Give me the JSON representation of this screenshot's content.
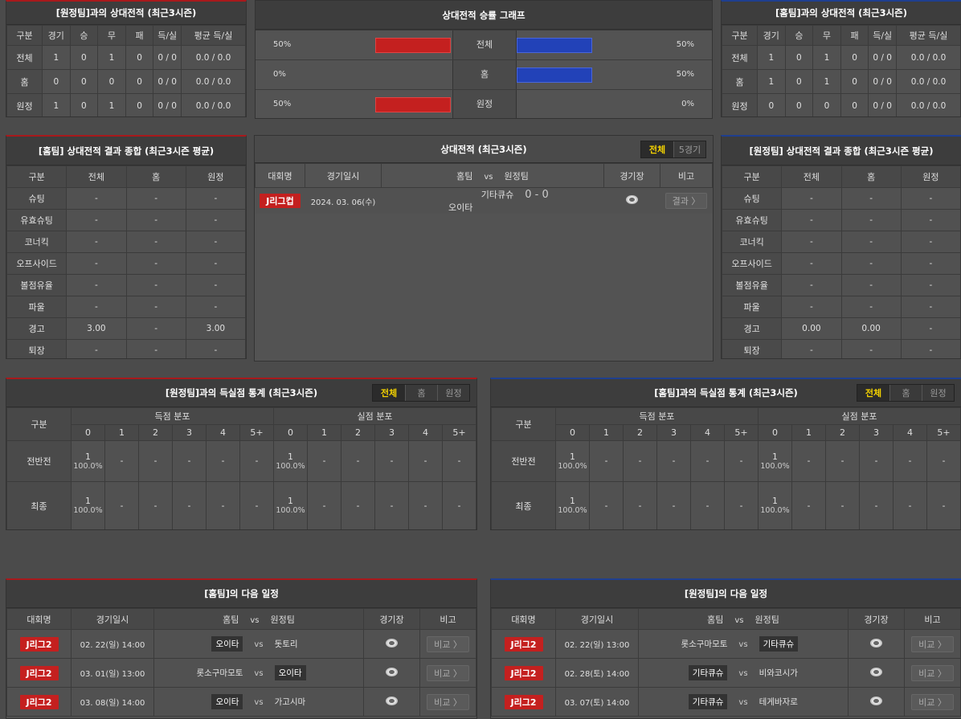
{
  "colors": {
    "accent_yellow": "#f5d300",
    "away_red": "#a8191c",
    "home_blue": "#1f3f8f",
    "badge_red": "#c4201f",
    "bar_blue": "#2242b8"
  },
  "h2h_away": {
    "title": "[원정팀]과의 상대전적 (최근3시즌)",
    "headers": [
      "구분",
      "경기",
      "승",
      "무",
      "패",
      "득/실",
      "평균 득/실"
    ],
    "rows": [
      [
        "전체",
        "1",
        "0",
        "1",
        "0",
        "0 / 0",
        "0.0 / 0.0"
      ],
      [
        "홈",
        "0",
        "0",
        "0",
        "0",
        "0 / 0",
        "0.0 / 0.0"
      ],
      [
        "원정",
        "1",
        "0",
        "1",
        "0",
        "0 / 0",
        "0.0 / 0.0"
      ]
    ]
  },
  "h2h_home": {
    "title": "[홈팀]과의 상대전적 (최근3시즌)",
    "headers": [
      "구분",
      "경기",
      "승",
      "무",
      "패",
      "득/실",
      "평균 득/실"
    ],
    "rows": [
      [
        "전체",
        "1",
        "0",
        "1",
        "0",
        "0 / 0",
        "0.0 / 0.0"
      ],
      [
        "홈",
        "1",
        "0",
        "1",
        "0",
        "0 / 0",
        "0.0 / 0.0"
      ],
      [
        "원정",
        "0",
        "0",
        "0",
        "0",
        "0 / 0",
        "0.0 / 0.0"
      ]
    ]
  },
  "graph": {
    "title": "상대전적 승률 그래프",
    "rows": [
      {
        "label": "전체",
        "left": "50%",
        "left_value": 50,
        "right": "50%",
        "right_value": 50
      },
      {
        "label": "홈",
        "left": "0%",
        "left_value": 0,
        "right": "50%",
        "right_value": 50
      },
      {
        "label": "원정",
        "left": "50%",
        "left_value": 50,
        "right": "0%",
        "right_value": 0
      }
    ]
  },
  "summary_home": {
    "title": "[홈팀] 상대전적 결과 종합 (최근3시즌 평균)",
    "headers": [
      "구분",
      "전체",
      "홈",
      "원정"
    ],
    "rows": [
      [
        "슈팅",
        "-",
        "-",
        "-"
      ],
      [
        "유효슈팅",
        "-",
        "-",
        "-"
      ],
      [
        "코너킥",
        "-",
        "-",
        "-"
      ],
      [
        "오프사이드",
        "-",
        "-",
        "-"
      ],
      [
        "볼점유율",
        "-",
        "-",
        "-"
      ],
      [
        "파울",
        "-",
        "-",
        "-"
      ],
      [
        "경고",
        "3.00",
        "-",
        "3.00"
      ],
      [
        "퇴장",
        "-",
        "-",
        "-"
      ]
    ]
  },
  "summary_away": {
    "title": "[원정팀] 상대전적 결과 종합 (최근3시즌 평균)",
    "headers": [
      "구분",
      "전체",
      "홈",
      "원정"
    ],
    "rows": [
      [
        "슈팅",
        "-",
        "-",
        "-"
      ],
      [
        "유효슈팅",
        "-",
        "-",
        "-"
      ],
      [
        "코너킥",
        "-",
        "-",
        "-"
      ],
      [
        "오프사이드",
        "-",
        "-",
        "-"
      ],
      [
        "볼점유율",
        "-",
        "-",
        "-"
      ],
      [
        "파울",
        "-",
        "-",
        "-"
      ],
      [
        "경고",
        "0.00",
        "0.00",
        "-"
      ],
      [
        "퇴장",
        "-",
        "-",
        "-"
      ]
    ]
  },
  "h2h_matches": {
    "title": "상대전적 (최근3시즌)",
    "tabs": [
      "전체",
      "5경기"
    ],
    "headers": [
      "대회명",
      "경기일시",
      "홈팀",
      "vs",
      "원정팀",
      "경기장",
      "비고"
    ],
    "rows": [
      {
        "league": "J리그컵",
        "date": "2024. 03. 06(수)",
        "home": "기타큐슈",
        "score": "0 - 0",
        "away": "오이타",
        "button": "결과 〉"
      }
    ]
  },
  "goals_away": {
    "title": "[원정팀]과의 득실점 통계 (최근3시즌)",
    "tabs": [
      "전체",
      "홈",
      "원정"
    ],
    "col_label": "구분",
    "scored": "득점 분포",
    "conceded": "실점 분포",
    "buckets": [
      "0",
      "1",
      "2",
      "3",
      "4",
      "5+"
    ],
    "rows": [
      {
        "label": "전반전",
        "cells": [
          [
            "1",
            "100.0%"
          ],
          [
            "-"
          ],
          [
            "-"
          ],
          [
            "-"
          ],
          [
            "-"
          ],
          [
            "-"
          ],
          [
            "1",
            "100.0%"
          ],
          [
            "-"
          ],
          [
            "-"
          ],
          [
            "-"
          ],
          [
            "-"
          ],
          [
            "-"
          ]
        ]
      },
      {
        "label": "최종",
        "cells": [
          [
            "1",
            "100.0%"
          ],
          [
            "-"
          ],
          [
            "-"
          ],
          [
            "-"
          ],
          [
            "-"
          ],
          [
            "-"
          ],
          [
            "1",
            "100.0%"
          ],
          [
            "-"
          ],
          [
            "-"
          ],
          [
            "-"
          ],
          [
            "-"
          ],
          [
            "-"
          ]
        ]
      }
    ]
  },
  "goals_home": {
    "title": "[홈팀]과의 득실점 통계 (최근3시즌)",
    "tabs": [
      "전체",
      "홈",
      "원정"
    ],
    "col_label": "구분",
    "scored": "득점 분포",
    "conceded": "실점 분포",
    "buckets": [
      "0",
      "1",
      "2",
      "3",
      "4",
      "5+"
    ],
    "rows": [
      {
        "label": "전반전",
        "cells": [
          [
            "1",
            "100.0%"
          ],
          [
            "-"
          ],
          [
            "-"
          ],
          [
            "-"
          ],
          [
            "-"
          ],
          [
            "-"
          ],
          [
            "1",
            "100.0%"
          ],
          [
            "-"
          ],
          [
            "-"
          ],
          [
            "-"
          ],
          [
            "-"
          ],
          [
            "-"
          ]
        ]
      },
      {
        "label": "최종",
        "cells": [
          [
            "1",
            "100.0%"
          ],
          [
            "-"
          ],
          [
            "-"
          ],
          [
            "-"
          ],
          [
            "-"
          ],
          [
            "-"
          ],
          [
            "1",
            "100.0%"
          ],
          [
            "-"
          ],
          [
            "-"
          ],
          [
            "-"
          ],
          [
            "-"
          ],
          [
            "-"
          ]
        ]
      }
    ]
  },
  "next_home": {
    "title": "[홈팀]의 다음 일정",
    "headers": [
      "대회명",
      "경기일시",
      "홈팀",
      "vs",
      "원정팀",
      "경기장",
      "비고"
    ],
    "rows": [
      {
        "league": "J리그2",
        "date": "02. 22(일) 14:00",
        "home": "오이타",
        "away": "돗토리",
        "hl": "home",
        "button": "비교 〉"
      },
      {
        "league": "J리그2",
        "date": "03. 01(일) 13:00",
        "home": "롯소구마모토",
        "away": "오이타",
        "hl": "away",
        "button": "비교 〉"
      },
      {
        "league": "J리그2",
        "date": "03. 08(일) 14:00",
        "home": "오이타",
        "away": "가고시마",
        "hl": "home",
        "button": "비교 〉"
      }
    ]
  },
  "next_away": {
    "title": "[원정팀]의 다음 일정",
    "headers": [
      "대회명",
      "경기일시",
      "홈팀",
      "vs",
      "원정팀",
      "경기장",
      "비고"
    ],
    "rows": [
      {
        "league": "J리그2",
        "date": "02. 22(일) 13:00",
        "home": "롯소구마모토",
        "away": "기타큐슈",
        "hl": "away",
        "button": "비교 〉"
      },
      {
        "league": "J리그2",
        "date": "02. 28(토) 14:00",
        "home": "기타큐슈",
        "away": "비와코시가",
        "hl": "home",
        "button": "비교 〉"
      },
      {
        "league": "J리그2",
        "date": "03. 07(토) 14:00",
        "home": "기타큐슈",
        "away": "테게바자로",
        "hl": "home",
        "button": "비교 〉"
      }
    ]
  }
}
